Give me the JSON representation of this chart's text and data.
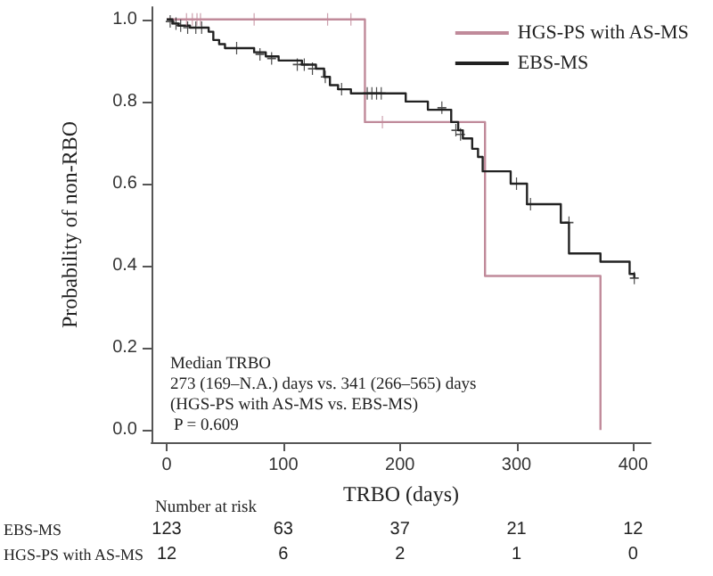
{
  "chart_data": {
    "type": "step",
    "xlabel": "TRBO (days)",
    "ylabel": "Probability of non-RBO",
    "xlim": [
      -13,
      415
    ],
    "ylim": [
      -0.03,
      1.03
    ],
    "xticks": [
      0,
      100,
      200,
      300,
      400
    ],
    "yticks": [
      {
        "value": 0,
        "label": "0.0"
      },
      {
        "value": 0.2,
        "label": "0.2"
      },
      {
        "value": 0.4,
        "label": "0.4"
      },
      {
        "value": 0.6,
        "label": "0.6"
      },
      {
        "value": 0.8,
        "label": "0.8"
      },
      {
        "value": 1,
        "label": "1.0"
      }
    ],
    "grid": false,
    "legend": "top right",
    "series": [
      {
        "name": "HGS-PS with AS-MS",
        "color": "#c08a9a",
        "x": [
          0,
          170,
          273,
          372
        ],
        "values": [
          1,
          0.75,
          0.375,
          0
        ]
      },
      {
        "name": "EBS-MS",
        "color": "#222222",
        "x": [
          0,
          5,
          10,
          20,
          32,
          36,
          40,
          45,
          50,
          75,
          85,
          96,
          116,
          128,
          135,
          140,
          147,
          158,
          205,
          224,
          244,
          250,
          254,
          262,
          267,
          271,
          295,
          309,
          338,
          345,
          372,
          397,
          401
        ],
        "values": [
          1,
          0.99,
          0.985,
          0.98,
          0.98,
          0.97,
          0.95,
          0.94,
          0.93,
          0.92,
          0.91,
          0.9,
          0.89,
          0.88,
          0.86,
          0.84,
          0.83,
          0.82,
          0.8,
          0.78,
          0.75,
          0.73,
          0.71,
          0.685,
          0.665,
          0.63,
          0.6,
          0.55,
          0.505,
          0.43,
          0.41,
          0.38,
          0.37
        ]
      },
      {
        "type": "scatter",
        "marker": "cross",
        "color": "#c08a9a",
        "x": [
          17,
          22,
          26,
          29,
          75,
          138,
          158,
          185
        ],
        "values": [
          1,
          1,
          1,
          1,
          1,
          1,
          1,
          0.75
        ]
      },
      {
        "type": "scatter",
        "marker": "cross",
        "color": "#222222",
        "x": [
          3,
          8,
          12,
          18,
          25,
          30,
          60,
          80,
          90,
          112,
          118,
          125,
          136,
          150,
          172,
          176,
          180,
          184,
          236,
          248,
          252,
          300,
          312,
          345,
          401
        ],
        "values": [
          0.995,
          0.99,
          0.985,
          0.98,
          0.98,
          0.98,
          0.93,
          0.915,
          0.905,
          0.89,
          0.89,
          0.88,
          0.86,
          0.83,
          0.82,
          0.82,
          0.82,
          0.82,
          0.785,
          0.73,
          0.72,
          0.6,
          0.55,
          0.505,
          0.37
        ]
      }
    ],
    "annotations": [
      "Median TRBO",
      "273 (169–N.A.) days vs. 341 (266–565) days",
      "(HGS-PS with AS-MS vs. EBS-MS)",
      "P = 0.609",
      "Number at risk",
      "EBS-MS",
      "123",
      "63",
      "37",
      "21",
      "12",
      "HGS-PS with AS-MS",
      "12",
      "6",
      "2",
      "1",
      "0"
    ]
  }
}
